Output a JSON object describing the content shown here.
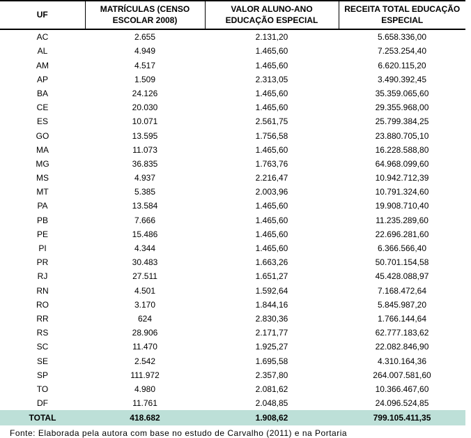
{
  "headers": {
    "uf": "UF",
    "matriculas": "MATRÍCULAS (CENSO ESCOLAR 2008)",
    "valor": "VALOR ALUNO-ANO EDUCAÇÃO ESPECIAL",
    "receita": "RECEITA TOTAL EDUCAÇÃO ESPECIAL"
  },
  "rows": [
    {
      "uf": "AC",
      "mat": "2.655",
      "val": "2.131,20",
      "rec": "5.658.336,00"
    },
    {
      "uf": "AL",
      "mat": "4.949",
      "val": "1.465,60",
      "rec": "7.253.254,40"
    },
    {
      "uf": "AM",
      "mat": "4.517",
      "val": "1.465,60",
      "rec": "6.620.115,20"
    },
    {
      "uf": "AP",
      "mat": "1.509",
      "val": "2.313,05",
      "rec": "3.490.392,45"
    },
    {
      "uf": "BA",
      "mat": "24.126",
      "val": "1.465,60",
      "rec": "35.359.065,60"
    },
    {
      "uf": "CE",
      "mat": "20.030",
      "val": "1.465,60",
      "rec": "29.355.968,00"
    },
    {
      "uf": "ES",
      "mat": "10.071",
      "val": "2.561,75",
      "rec": "25.799.384,25"
    },
    {
      "uf": "GO",
      "mat": "13.595",
      "val": "1.756,58",
      "rec": "23.880.705,10"
    },
    {
      "uf": "MA",
      "mat": "11.073",
      "val": "1.465,60",
      "rec": "16.228.588,80"
    },
    {
      "uf": "MG",
      "mat": "36.835",
      "val": "1.763,76",
      "rec": "64.968.099,60"
    },
    {
      "uf": "MS",
      "mat": "4.937",
      "val": "2.216,47",
      "rec": "10.942.712,39"
    },
    {
      "uf": "MT",
      "mat": "5.385",
      "val": "2.003,96",
      "rec": "10.791.324,60"
    },
    {
      "uf": "PA",
      "mat": "13.584",
      "val": "1.465,60",
      "rec": "19.908.710,40"
    },
    {
      "uf": "PB",
      "mat": "7.666",
      "val": "1.465,60",
      "rec": "11.235.289,60"
    },
    {
      "uf": "PE",
      "mat": "15.486",
      "val": "1.465,60",
      "rec": "22.696.281,60"
    },
    {
      "uf": "PI",
      "mat": "4.344",
      "val": "1.465,60",
      "rec": "6.366.566,40"
    },
    {
      "uf": "PR",
      "mat": "30.483",
      "val": "1.663,26",
      "rec": "50.701.154,58"
    },
    {
      "uf": "RJ",
      "mat": "27.511",
      "val": "1.651,27",
      "rec": "45.428.088,97"
    },
    {
      "uf": "RN",
      "mat": "4.501",
      "val": "1.592,64",
      "rec": "7.168.472,64"
    },
    {
      "uf": "RO",
      "mat": "3.170",
      "val": "1.844,16",
      "rec": "5.845.987,20"
    },
    {
      "uf": "RR",
      "mat": "624",
      "val": "2.830,36",
      "rec": "1.766.144,64"
    },
    {
      "uf": "RS",
      "mat": "28.906",
      "val": "2.171,77",
      "rec": "62.777.183,62"
    },
    {
      "uf": "SC",
      "mat": "11.470",
      "val": "1.925,27",
      "rec": "22.082.846,90"
    },
    {
      "uf": "SE",
      "mat": "2.542",
      "val": "1.695,58",
      "rec": "4.310.164,36"
    },
    {
      "uf": "SP",
      "mat": "111.972",
      "val": "2.357,80",
      "rec": "264.007.581,60"
    },
    {
      "uf": "TO",
      "mat": "4.980",
      "val": "2.081,62",
      "rec": "10.366.467,60"
    },
    {
      "uf": "DF",
      "mat": "11.761",
      "val": "2.048,85",
      "rec": "24.096.524,85"
    }
  ],
  "total": {
    "label": "TOTAL",
    "mat": "418.682",
    "val": "1.908,62",
    "rec": "799.105.411,35"
  },
  "source_line": "Fonte:  Elaborada  pela  autora  com  base  no  estudo  de  Carvalho  (2011)  e  na  Portaria"
}
